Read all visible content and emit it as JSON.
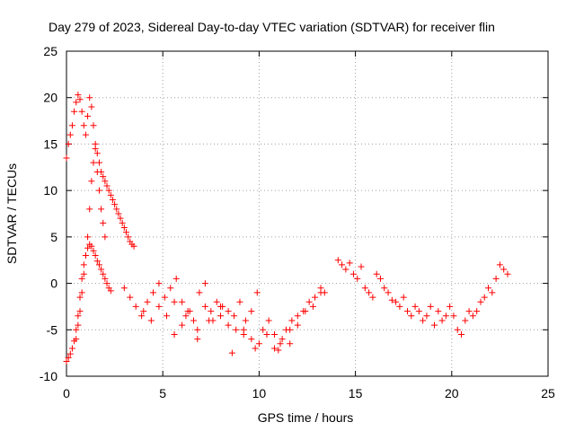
{
  "chart_data": {
    "type": "scatter",
    "title": "Day 279 of 2023, Sidereal Day-to-day VTEC variation (SDTVAR) for receiver flin",
    "xlabel": "GPS time / hours",
    "ylabel": "SDTVAR / TECUs",
    "xlim": [
      0,
      25
    ],
    "ylim": [
      -10,
      25
    ],
    "xticks": [
      0,
      5,
      10,
      15,
      20,
      25
    ],
    "yticks": [
      -10,
      -5,
      0,
      5,
      10,
      15,
      20,
      25
    ],
    "xtick_labels": [
      "0",
      "5",
      "10",
      "15",
      "20",
      "25"
    ],
    "ytick_labels": [
      "-10",
      "-5",
      "0",
      "5",
      "10",
      "15",
      "20",
      "25"
    ],
    "grid": true,
    "marker": "+",
    "color": "#ff0000",
    "series": [
      {
        "name": "SDTVAR",
        "x": [
          0.0,
          0.1,
          0.2,
          0.3,
          0.4,
          0.5,
          0.6,
          0.7,
          0.8,
          0.9,
          1.0,
          1.1,
          1.2,
          1.3,
          1.4,
          1.5,
          1.6,
          1.7,
          1.8,
          1.9,
          2.0,
          2.1,
          2.2,
          2.3,
          0.0,
          0.1,
          0.2,
          0.3,
          0.4,
          0.5,
          0.6,
          0.7,
          0.8,
          0.9,
          1.0,
          1.1,
          1.2,
          1.3,
          1.4,
          1.5,
          1.6,
          1.7,
          1.8,
          1.9,
          2.0,
          2.1,
          2.2,
          2.3,
          2.4,
          2.5,
          2.6,
          2.7,
          2.8,
          2.9,
          3.0,
          3.1,
          3.2,
          3.3,
          3.4,
          3.5,
          0.5,
          0.6,
          0.7,
          0.8,
          0.9,
          1.0,
          1.1,
          1.2,
          1.3,
          1.4,
          1.5,
          1.6,
          1.7,
          1.8,
          1.9,
          2.0,
          3.0,
          3.3,
          3.6,
          3.9,
          4.2,
          4.5,
          4.8,
          5.1,
          5.4,
          5.7,
          6.0,
          6.3,
          6.6,
          6.9,
          7.2,
          7.5,
          7.8,
          8.1,
          8.4,
          8.7,
          9.0,
          9.3,
          9.6,
          9.9,
          10.2,
          10.5,
          10.8,
          11.1,
          11.4,
          11.7,
          12.0,
          12.3,
          12.6,
          12.9,
          13.2,
          13.4,
          4.0,
          4.4,
          4.8,
          5.2,
          5.6,
          6.0,
          6.4,
          6.8,
          7.2,
          7.6,
          8.0,
          8.4,
          8.8,
          9.2,
          9.6,
          10.0,
          10.4,
          10.8,
          11.2,
          11.6,
          12.0,
          12.4,
          12.8,
          13.2,
          5.6,
          6.2,
          6.8,
          7.4,
          8.0,
          8.6,
          9.2,
          9.8,
          10.4,
          11.0,
          11.6,
          14.1,
          14.3,
          14.5,
          14.7,
          14.9,
          15.1,
          15.3,
          15.5,
          15.7,
          15.9,
          16.1,
          16.3,
          16.5,
          16.7,
          16.9,
          17.1,
          17.3,
          17.5,
          17.7,
          17.9,
          18.1,
          18.3,
          18.5,
          18.7,
          18.9,
          19.1,
          19.3,
          19.5,
          19.7,
          19.9,
          20.1,
          20.3,
          20.5,
          20.7,
          20.9,
          21.1,
          21.3,
          21.5,
          21.7,
          21.9,
          22.1,
          22.3,
          22.5,
          22.7,
          22.9
        ],
        "y": [
          -8.4,
          -8.0,
          -7.6,
          -7.0,
          -6.2,
          -5.0,
          -3.5,
          -1.5,
          0.5,
          2.0,
          3.0,
          3.8,
          4.2,
          4.0,
          3.5,
          3.0,
          2.4,
          2.0,
          1.5,
          1.0,
          0.5,
          0.0,
          -0.5,
          -0.8,
          13.5,
          15.0,
          16.0,
          17.0,
          18.5,
          19.5,
          20.3,
          19.8,
          18.5,
          17.0,
          16.0,
          18.0,
          20.0,
          19.0,
          17.0,
          15.0,
          14.0,
          13.0,
          12.0,
          11.5,
          11.0,
          10.5,
          10.0,
          9.5,
          9.0,
          8.5,
          8.0,
          7.5,
          7.0,
          6.5,
          6.0,
          5.5,
          5.0,
          4.5,
          4.2,
          4.0,
          -6.0,
          -4.5,
          -3.0,
          -1.0,
          1.0,
          3.0,
          5.0,
          8.0,
          11.0,
          13.0,
          14.5,
          12.0,
          10.0,
          8.0,
          6.5,
          5.0,
          -0.5,
          -1.5,
          -2.5,
          -3.5,
          -2.0,
          -1.0,
          0.0,
          -1.5,
          -0.5,
          0.5,
          -2.0,
          -3.0,
          -4.0,
          -1.0,
          0.0,
          -3.0,
          -2.0,
          -2.5,
          -3.0,
          -3.5,
          -2.0,
          -4.0,
          -3.0,
          -1.0,
          -5.0,
          -4.0,
          -5.5,
          -6.5,
          -5.0,
          -4.0,
          -4.5,
          -3.0,
          -2.0,
          -1.5,
          -0.5,
          -1.0,
          -3.0,
          -4.0,
          -2.5,
          -3.5,
          -2.0,
          -4.5,
          -3.0,
          -5.0,
          -2.5,
          -4.0,
          -3.5,
          -4.5,
          -5.0,
          -5.5,
          -6.0,
          -6.5,
          -5.5,
          -7.0,
          -6.0,
          -5.0,
          -3.5,
          -3.0,
          -2.5,
          -1.0,
          -5.5,
          -3.5,
          -6.0,
          -4.0,
          -2.5,
          -7.5,
          -5.0,
          -7.0,
          -5.5,
          -7.2,
          -6.5,
          2.5,
          2.0,
          1.5,
          2.2,
          1.0,
          0.5,
          1.8,
          -0.5,
          -1.0,
          -1.5,
          1.0,
          0.5,
          -0.5,
          -1.0,
          -1.8,
          -2.0,
          -2.5,
          -1.5,
          -3.0,
          -3.5,
          -2.5,
          -3.0,
          -4.0,
          -3.5,
          -2.5,
          -4.5,
          -3.0,
          -4.0,
          -3.5,
          -2.5,
          -3.5,
          -5.0,
          -5.5,
          -4.0,
          -3.0,
          -3.5,
          -3.0,
          -2.0,
          -1.5,
          -0.5,
          -1.0,
          0.5,
          2.0,
          1.5,
          1.0
        ]
      }
    ]
  }
}
